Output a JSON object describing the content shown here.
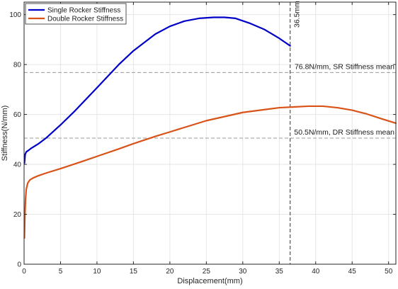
{
  "chart_data": {
    "type": "line",
    "title": "",
    "xlabel": "Displacement(mm)",
    "ylabel": "Stiffness(N/mm)",
    "xlim": [
      0,
      51
    ],
    "ylim": [
      0,
      105
    ],
    "x_ticks": [
      0,
      5,
      10,
      15,
      20,
      25,
      30,
      35,
      40,
      45,
      50
    ],
    "y_ticks": [
      0,
      20,
      40,
      60,
      80,
      100
    ],
    "grid": true,
    "legend_position": "top-left",
    "series": [
      {
        "name": "Single Rocker Stiffness",
        "color": "#0000c8",
        "x": [
          0.05,
          0.15,
          0.3,
          0.6,
          1,
          2,
          3,
          5,
          7,
          10,
          13,
          15,
          18,
          20,
          22,
          24,
          26,
          27.5,
          29,
          31,
          33,
          35,
          36.5
        ],
        "y": [
          40.5,
          44,
          45,
          45.6,
          46.5,
          48.3,
          50.5,
          55.8,
          61.5,
          70.7,
          80,
          85.5,
          92.2,
          95.3,
          97.4,
          98.5,
          98.9,
          98.9,
          98.5,
          96.5,
          94,
          90.5,
          87.5
        ]
      },
      {
        "name": "Double Rocker Stiffness",
        "color": "#d95319",
        "x": [
          0.05,
          0.1,
          0.2,
          0.3,
          0.5,
          0.8,
          1.2,
          2,
          3,
          5,
          8,
          10,
          13,
          15,
          18,
          20,
          25,
          30,
          35,
          37,
          39,
          41,
          43,
          45,
          47,
          49,
          51
        ],
        "y": [
          10.5,
          18,
          26,
          30,
          32.5,
          33.8,
          34.5,
          35.5,
          36.5,
          38.3,
          41.2,
          43.2,
          46.2,
          48.3,
          51.2,
          53,
          57.5,
          60.8,
          62.7,
          63,
          63.3,
          63.3,
          62.7,
          61.7,
          60.2,
          58.3,
          56.5
        ]
      }
    ],
    "reference_lines": [
      {
        "axis": "y",
        "value": 76.8,
        "label": "76.8N/mm, SR Stiffness mean"
      },
      {
        "axis": "y",
        "value": 50.5,
        "label": "50.5N/mm, DR Stiffness mean"
      },
      {
        "axis": "x",
        "value": 36.5,
        "label": "36.5mm"
      }
    ],
    "colors": {
      "grid": "#e6e6e6",
      "reference": "#999999",
      "axis": "#262626"
    }
  }
}
